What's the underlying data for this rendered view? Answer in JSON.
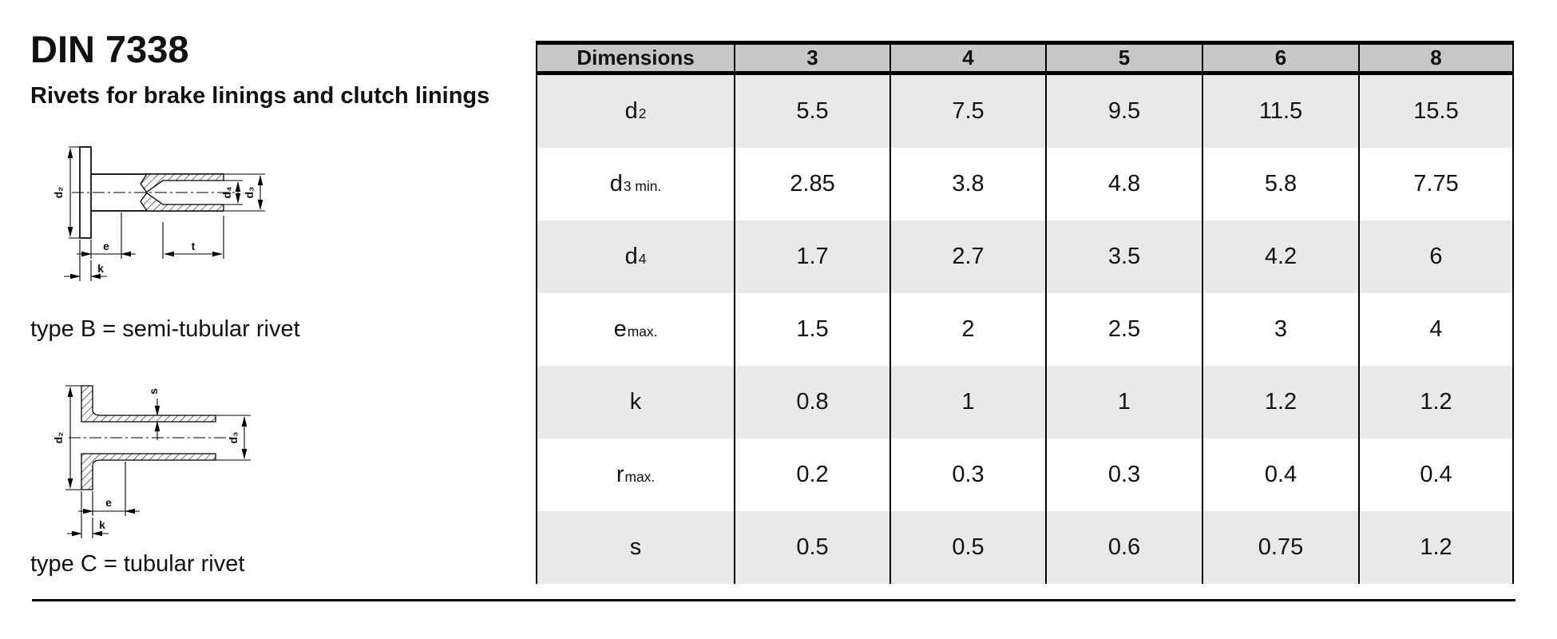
{
  "page": {
    "title": "DIN 7338",
    "subtitle": "Rivets for brake linings and clutch linings"
  },
  "drawings": {
    "type_b": {
      "caption": "type B = semi-tubular rivet",
      "labels": {
        "d2": "d₂",
        "d4": "d₄",
        "d3": "d₃",
        "e": "e",
        "t": "t",
        "k": "k"
      }
    },
    "type_c": {
      "caption": "type C = tubular rivet",
      "labels": {
        "d2": "d₂",
        "s": "s",
        "d3": "d₃",
        "e": "e",
        "k": "k"
      }
    }
  },
  "table": {
    "header": {
      "label": "Dimensions",
      "sizes": [
        "3",
        "4",
        "5",
        "6",
        "8"
      ]
    },
    "rows": [
      {
        "base": "d",
        "sub": "2",
        "values": [
          "5.5",
          "7.5",
          "9.5",
          "11.5",
          "15.5"
        ]
      },
      {
        "base": "d",
        "sub": "3 min.",
        "values": [
          "2.85",
          "3.8",
          "4.8",
          "5.8",
          "7.75"
        ]
      },
      {
        "base": "d",
        "sub": "4",
        "values": [
          "1.7",
          "2.7",
          "3.5",
          "4.2",
          "6"
        ]
      },
      {
        "base": "e",
        "sub": "max.",
        "values": [
          "1.5",
          "2",
          "2.5",
          "3",
          "4"
        ]
      },
      {
        "base": "k",
        "sub": "",
        "values": [
          "0.8",
          "1",
          "1",
          "1.2",
          "1.2"
        ]
      },
      {
        "base": "r",
        "sub": "max.",
        "values": [
          "0.2",
          "0.3",
          "0.3",
          "0.4",
          "0.4"
        ]
      },
      {
        "base": "s",
        "sub": "",
        "values": [
          "0.5",
          "0.5",
          "0.6",
          "0.75",
          "1.2"
        ]
      }
    ]
  },
  "colors": {
    "header_bg": "#c8c8c8",
    "alt_row_bg": "#e9e9e8",
    "rule": "#000000",
    "text": "#111111"
  },
  "chart_data": {
    "type": "table",
    "columns": [
      "Dimensions",
      "3",
      "4",
      "5",
      "6",
      "8"
    ],
    "rows": [
      [
        "d2",
        5.5,
        7.5,
        9.5,
        11.5,
        15.5
      ],
      [
        "d3 min.",
        2.85,
        3.8,
        4.8,
        5.8,
        7.75
      ],
      [
        "d4",
        1.7,
        2.7,
        3.5,
        4.2,
        6
      ],
      [
        "e max.",
        1.5,
        2,
        2.5,
        3,
        4
      ],
      [
        "k",
        0.8,
        1,
        1,
        1.2,
        1.2
      ],
      [
        "r max.",
        0.2,
        0.3,
        0.3,
        0.4,
        0.4
      ],
      [
        "s",
        0.5,
        0.5,
        0.6,
        0.75,
        1.2
      ]
    ]
  }
}
